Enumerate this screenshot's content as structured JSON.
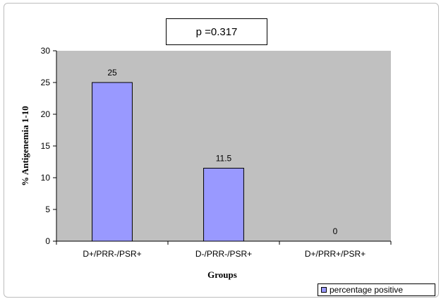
{
  "annotation": "p =0.317",
  "legend_label": "percentage positive",
  "colors": {
    "plot_area": "#c0c0c0",
    "bar_fill": "#9999ff",
    "bar_stroke": "#000000"
  },
  "chart_data": {
    "type": "bar",
    "categories": [
      "D+/PRR-/PSR+",
      "D-/PRR-/PSR+",
      "D+/PRR+/PSR+"
    ],
    "series": [
      {
        "name": "percentage positive",
        "values": [
          25,
          11.5,
          0
        ]
      }
    ],
    "data_labels": [
      "25",
      "11.5",
      "0"
    ],
    "xlabel": "Groups",
    "ylabel": "% Antigenemia 1-10",
    "ylim": [
      0,
      30
    ],
    "yticks": [
      0,
      5,
      10,
      15,
      20,
      25,
      30
    ],
    "legend_position": "bottom-right",
    "grid": false
  }
}
